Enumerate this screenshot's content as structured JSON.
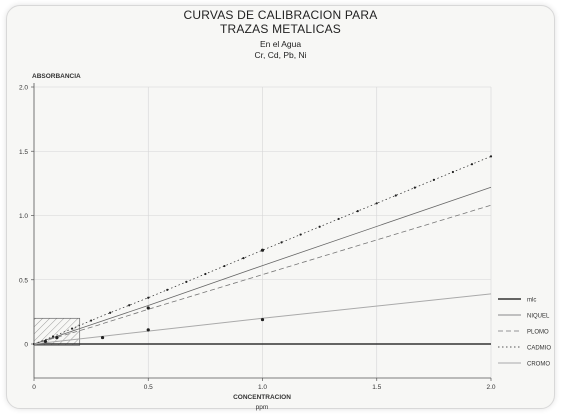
{
  "chart_data": {
    "type": "line",
    "title_lines": [
      "CURVAS DE CALIBRACION PARA",
      "TRAZAS METALICAS"
    ],
    "subtitle_lines": [
      "En el Agua",
      "Cr, Cd, Pb, Ni"
    ],
    "ylabel": "ABSORBANCIA",
    "xlabel": "CONCENTRACION",
    "xunit": "ppm",
    "xlim": [
      0,
      2.0
    ],
    "ylim": [
      -0.1,
      2.0
    ],
    "x_ticks": [
      "0",
      "0.5",
      "1.0",
      "1.5",
      "2.0"
    ],
    "x_tick_values": [
      0,
      0.5,
      1.0,
      1.5,
      2.0
    ],
    "y_ticks": [
      "0",
      "0.5",
      "1.0",
      "1.5",
      "2.0"
    ],
    "y_tick_values": [
      0,
      0.5,
      1.0,
      1.5,
      2.0
    ],
    "grid": true,
    "legend_position": "right",
    "series": [
      {
        "name": "mlc",
        "x": [
          0,
          2.0
        ],
        "y": [
          0.0,
          0.0
        ],
        "style": "solid-thick",
        "color": "#333333"
      },
      {
        "name": "NIQUEL",
        "x": [
          0,
          0.25,
          0.5,
          1.0,
          2.0
        ],
        "y": [
          0.0,
          0.15,
          0.3,
          0.61,
          1.22
        ],
        "style": "solid",
        "color": "#666666"
      },
      {
        "name": "PLOMO",
        "x": [
          0,
          0.25,
          0.5,
          1.0,
          2.0
        ],
        "y": [
          0.0,
          0.13,
          0.27,
          0.54,
          1.08
        ],
        "style": "dashed",
        "color": "#777777"
      },
      {
        "name": "CADMIO",
        "x": [
          0,
          0.1,
          0.2,
          0.3,
          0.5,
          1.0,
          2.0
        ],
        "y": [
          0.0,
          0.07,
          0.145,
          0.22,
          0.36,
          0.73,
          1.46
        ],
        "style": "dotted-markers",
        "color": "#222222"
      },
      {
        "name": "CROMO",
        "x": [
          0,
          0.25,
          0.5,
          1.0,
          2.0
        ],
        "y": [
          0.0,
          0.05,
          0.1,
          0.2,
          0.39
        ],
        "style": "solid-light",
        "color": "#aaaaaa"
      }
    ],
    "markers": [
      {
        "x": 0.05,
        "y": 0.02
      },
      {
        "x": 0.1,
        "y": 0.05
      },
      {
        "x": 0.3,
        "y": 0.05
      },
      {
        "x": 0.5,
        "y": 0.11
      },
      {
        "x": 0.5,
        "y": 0.28
      },
      {
        "x": 1.0,
        "y": 0.19
      },
      {
        "x": 1.0,
        "y": 0.73
      }
    ],
    "hatched_region": {
      "x": [
        0,
        0.2
      ],
      "y": [
        -0.01,
        0.2
      ]
    }
  }
}
